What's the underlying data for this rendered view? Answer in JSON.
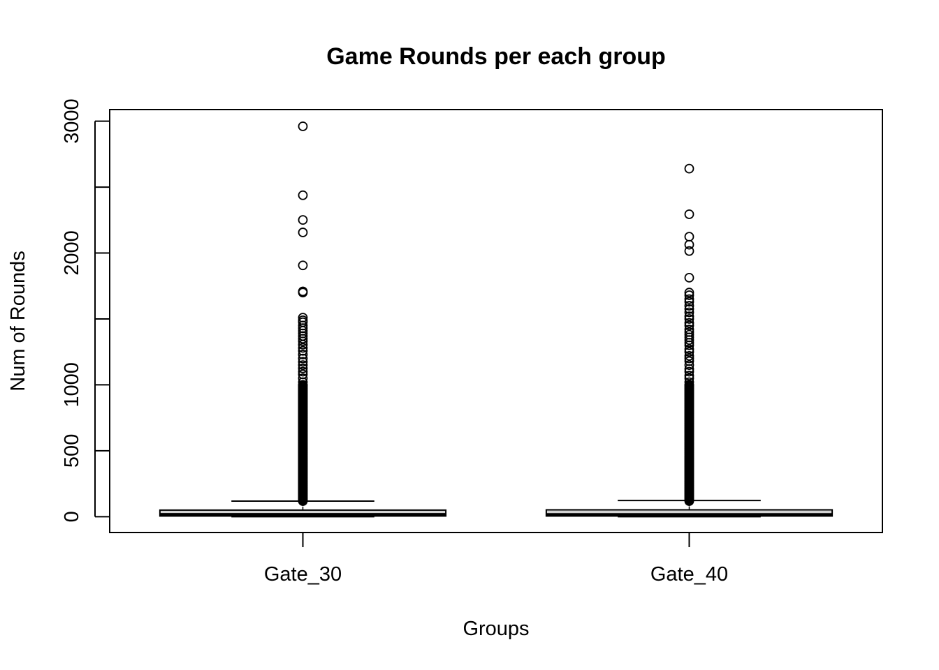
{
  "chart_data": {
    "type": "boxplot",
    "title": "Game Rounds per each group",
    "xlabel": "Groups",
    "ylabel": "Num of Rounds",
    "ylim": [
      -120,
      3088
    ],
    "yticks": [
      0,
      500,
      1000,
      1500,
      2000,
      2500,
      3000
    ],
    "ytick_labels": [
      "0",
      "500",
      "1000",
      "",
      "2000",
      "",
      "3000"
    ],
    "categories": [
      "Gate_30",
      "Gate_40"
    ],
    "boxes": [
      {
        "name": "Gate_30",
        "min": 0,
        "q1": 5,
        "median": 17,
        "q3": 50,
        "whisker_high": 118,
        "outliers": [
          2961,
          2438,
          2251,
          2156,
          1906,
          1709,
          1700,
          1510,
          1490,
          1475,
          1450,
          1430,
          1410,
          1390,
          1370,
          1350,
          1330,
          1305,
          1280,
          1258,
          1230,
          1200,
          1175,
          1150,
          1125,
          1100,
          1080,
          1050,
          1020,
          1000
        ]
      },
      {
        "name": "Gate_40",
        "min": 0,
        "q1": 5,
        "median": 16,
        "q3": 52,
        "whisker_high": 123,
        "outliers": [
          2640,
          2294,
          2124,
          2063,
          2015,
          1813,
          1700,
          1680,
          1650,
          1630,
          1600,
          1575,
          1550,
          1520,
          1500,
          1470,
          1450,
          1420,
          1400,
          1380,
          1360,
          1340,
          1320,
          1300,
          1270,
          1250,
          1220,
          1200,
          1180,
          1150,
          1120,
          1100,
          1070,
          1050,
          1020,
          1000
        ]
      }
    ],
    "dense_outliers_from": 118,
    "dense_outliers_to": 1000,
    "grid": false,
    "legend": "none"
  }
}
